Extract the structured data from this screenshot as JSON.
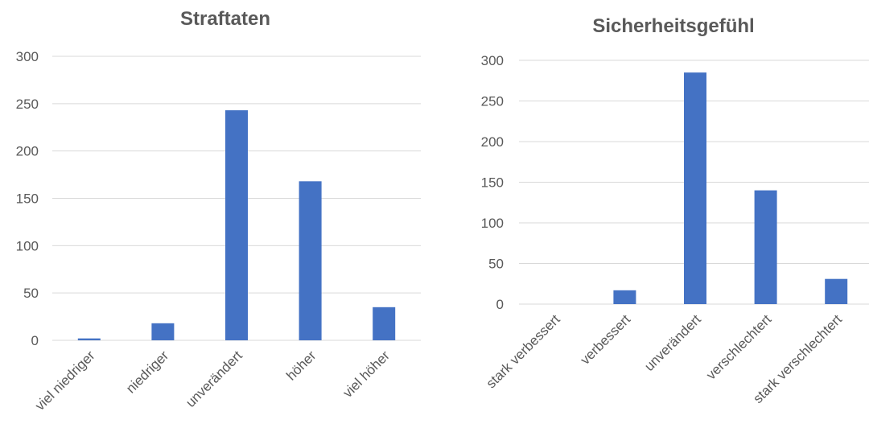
{
  "chart_data": [
    {
      "type": "bar",
      "title": "Straftaten",
      "categories": [
        "viel niedriger",
        "niedriger",
        "unverändert",
        "höher",
        "viel höher"
      ],
      "values": [
        2,
        18,
        243,
        168,
        35
      ],
      "ylim": [
        0,
        300
      ],
      "yticks": [
        "0",
        "50",
        "100",
        "150",
        "200",
        "250",
        "300"
      ],
      "grid": true,
      "color": "#4472c4"
    },
    {
      "type": "bar",
      "title": "Sicherheitsgefühl",
      "categories": [
        "stark verbessert",
        "verbessert",
        "unverändert",
        "verschlechtert",
        "stark verschlechtert"
      ],
      "values": [
        0,
        17,
        285,
        140,
        31
      ],
      "ylim": [
        0,
        300
      ],
      "yticks": [
        "0",
        "50",
        "100",
        "150",
        "200",
        "250",
        "300"
      ],
      "grid": true,
      "color": "#4472c4"
    }
  ]
}
